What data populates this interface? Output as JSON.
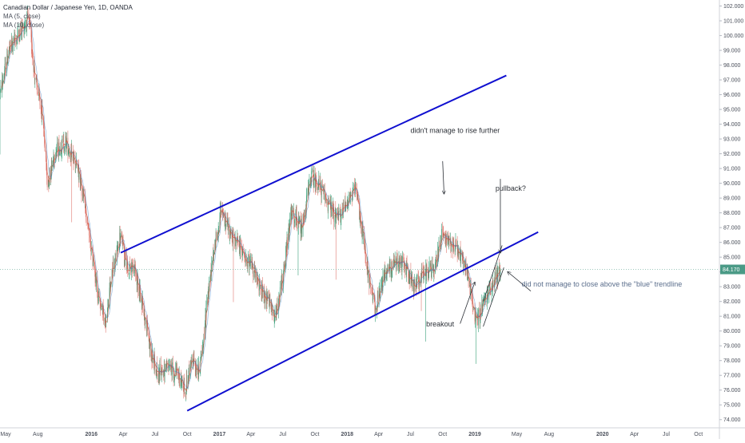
{
  "header": {
    "title": "Canadian Dollar / Japanese Yen, 1D, OANDA",
    "indicators": [
      "MA (5, close)",
      "MA (10, close)"
    ]
  },
  "colors": {
    "up": "#3aa07a",
    "down": "#e07870",
    "ma": "#c9533f",
    "trendline": "#1010d0",
    "price_line": "#7fb6a8",
    "price_badge": "#4a9a86",
    "annotation": "#2b2f36",
    "annotation_blue": "#5b6e8c"
  },
  "chart_data": {
    "type": "candlestick",
    "symbol": "CADJPY",
    "interval": "1D",
    "y_axis": {
      "range": [
        73.5,
        102.3
      ],
      "ticks": [
        "74.000",
        "75.000",
        "76.000",
        "77.000",
        "78.000",
        "79.000",
        "80.000",
        "81.000",
        "82.000",
        "83.000",
        "84.000",
        "85.000",
        "86.000",
        "87.000",
        "88.000",
        "89.000",
        "90.000",
        "91.000",
        "92.000",
        "93.000",
        "94.000",
        "95.000",
        "96.000",
        "97.000",
        "98.000",
        "99.000",
        "100.000",
        "101.000",
        "102.000"
      ]
    },
    "x_axis": {
      "range": [
        "2015-04-15",
        "2020-11-30"
      ],
      "ticks": [
        {
          "date": "2015-05-01",
          "label": "May"
        },
        {
          "date": "2015-08-01",
          "label": "Aug"
        },
        {
          "date": "2016-01-01",
          "label": "2016"
        },
        {
          "date": "2016-04-01",
          "label": "Apr"
        },
        {
          "date": "2016-07-01",
          "label": "Jul"
        },
        {
          "date": "2016-10-01",
          "label": "Oct"
        },
        {
          "date": "2017-01-01",
          "label": "2017"
        },
        {
          "date": "2017-04-01",
          "label": "Apr"
        },
        {
          "date": "2017-07-01",
          "label": "Jul"
        },
        {
          "date": "2017-10-01",
          "label": "Oct"
        },
        {
          "date": "2018-01-01",
          "label": "2018"
        },
        {
          "date": "2018-04-01",
          "label": "Apr"
        },
        {
          "date": "2018-07-01",
          "label": "Jul"
        },
        {
          "date": "2018-10-01",
          "label": "Oct"
        },
        {
          "date": "2019-01-01",
          "label": "2019"
        },
        {
          "date": "2019-05-01",
          "label": "May"
        },
        {
          "date": "2019-08-01",
          "label": "Aug"
        },
        {
          "date": "2020-01-01",
          "label": "2020"
        },
        {
          "date": "2020-04-01",
          "label": "Apr"
        },
        {
          "date": "2020-07-01",
          "label": "Jul"
        },
        {
          "date": "2020-10-01",
          "label": "Oct"
        }
      ]
    },
    "last_price": {
      "value": 84.17,
      "label": "84.170"
    },
    "price_path": [
      [
        "2015-04-15",
        96.0
      ],
      [
        "2015-05-10",
        99.0
      ],
      [
        "2015-06-05",
        100.0
      ],
      [
        "2015-07-05",
        101.2
      ],
      [
        "2015-07-25",
        97.0
      ],
      [
        "2015-08-15",
        94.5
      ],
      [
        "2015-08-28",
        90.0
      ],
      [
        "2015-09-20",
        92.2
      ],
      [
        "2015-10-20",
        92.8
      ],
      [
        "2015-11-25",
        90.8
      ],
      [
        "2015-12-20",
        87.5
      ],
      [
        "2016-01-20",
        82.5
      ],
      [
        "2016-02-10",
        80.5
      ],
      [
        "2016-03-05",
        84.5
      ],
      [
        "2016-03-25",
        86.5
      ],
      [
        "2016-04-10",
        84.5
      ],
      [
        "2016-05-05",
        84.0
      ],
      [
        "2016-05-25",
        82.0
      ],
      [
        "2016-06-20",
        78.5
      ],
      [
        "2016-07-10",
        77.2
      ],
      [
        "2016-08-10",
        77.5
      ],
      [
        "2016-09-05",
        77.0
      ],
      [
        "2016-09-25",
        76.0
      ],
      [
        "2016-10-15",
        78.0
      ],
      [
        "2016-11-05",
        77.2
      ],
      [
        "2016-11-25",
        81.5
      ],
      [
        "2016-12-15",
        85.5
      ],
      [
        "2017-01-05",
        88.0
      ],
      [
        "2017-02-05",
        86.5
      ],
      [
        "2017-03-05",
        85.5
      ],
      [
        "2017-04-01",
        84.5
      ],
      [
        "2017-04-25",
        83.0
      ],
      [
        "2017-05-20",
        82.0
      ],
      [
        "2017-06-10",
        81.0
      ],
      [
        "2017-06-30",
        83.5
      ],
      [
        "2017-07-25",
        88.0
      ],
      [
        "2017-08-25",
        87.0
      ],
      [
        "2017-09-20",
        90.5
      ],
      [
        "2017-10-10",
        90.0
      ],
      [
        "2017-11-10",
        88.5
      ],
      [
        "2017-12-05",
        87.5
      ],
      [
        "2018-01-05",
        89.0
      ],
      [
        "2018-01-25",
        89.5
      ],
      [
        "2018-02-15",
        86.5
      ],
      [
        "2018-03-10",
        82.5
      ],
      [
        "2018-03-25",
        81.5
      ],
      [
        "2018-04-20",
        84.0
      ],
      [
        "2018-05-15",
        84.5
      ],
      [
        "2018-06-15",
        84.5
      ],
      [
        "2018-07-10",
        83.0
      ],
      [
        "2018-08-10",
        84.0
      ],
      [
        "2018-09-10",
        84.2
      ],
      [
        "2018-09-28",
        86.5
      ],
      [
        "2018-10-15",
        86.0
      ],
      [
        "2018-11-15",
        85.5
      ],
      [
        "2018-12-10",
        84.0
      ],
      [
        "2018-12-25",
        82.0
      ],
      [
        "2019-01-03",
        80.5
      ],
      [
        "2019-01-25",
        81.8
      ],
      [
        "2019-02-15",
        83.0
      ],
      [
        "2019-03-05",
        83.8
      ],
      [
        "2019-03-15",
        84.17
      ]
    ],
    "drawings": {
      "upper_trendline": {
        "from": [
          "2016-03-25",
          85.3
        ],
        "to": [
          "2019-04-01",
          97.3
        ]
      },
      "lower_trendline": {
        "from": [
          "2016-10-01",
          74.6
        ],
        "to": [
          "2019-07-01",
          86.7
        ]
      },
      "channel_upper": {
        "from": [
          "2019-01-25",
          82.0
        ],
        "to": [
          "2019-03-20",
          85.8
        ]
      },
      "channel_lower": {
        "from": [
          "2019-01-25",
          80.3
        ],
        "to": [
          "2019-03-25",
          84.3
        ]
      }
    },
    "annotations": [
      {
        "text": "didn't manage to rise further",
        "at": [
          "2018-07-01",
          93.4
        ],
        "color": "annotation"
      },
      {
        "text": "pullback?",
        "at": [
          "2019-03-01",
          89.5
        ],
        "color": "annotation"
      },
      {
        "text": "did not manage to close above the \"blue\" trendline",
        "at": [
          "2019-05-15",
          83.0
        ],
        "color": "annotation_blue"
      },
      {
        "text": "breakout",
        "at": [
          "2018-08-15",
          80.3
        ],
        "color": "annotation"
      }
    ],
    "arrows": [
      {
        "from": [
          "2018-10-01",
          91.5
        ],
        "to": [
          "2018-10-05",
          89.3
        ]
      },
      {
        "from": [
          "2019-03-15",
          90.3
        ],
        "to": [
          "2019-03-15",
          85.3
        ]
      },
      {
        "from": [
          "2019-06-10",
          82.7
        ],
        "to": [
          "2019-04-05",
          84.0
        ]
      },
      {
        "from": [
          "2018-11-20",
          80.5
        ],
        "to": [
          "2019-01-01",
          83.3
        ]
      }
    ]
  }
}
